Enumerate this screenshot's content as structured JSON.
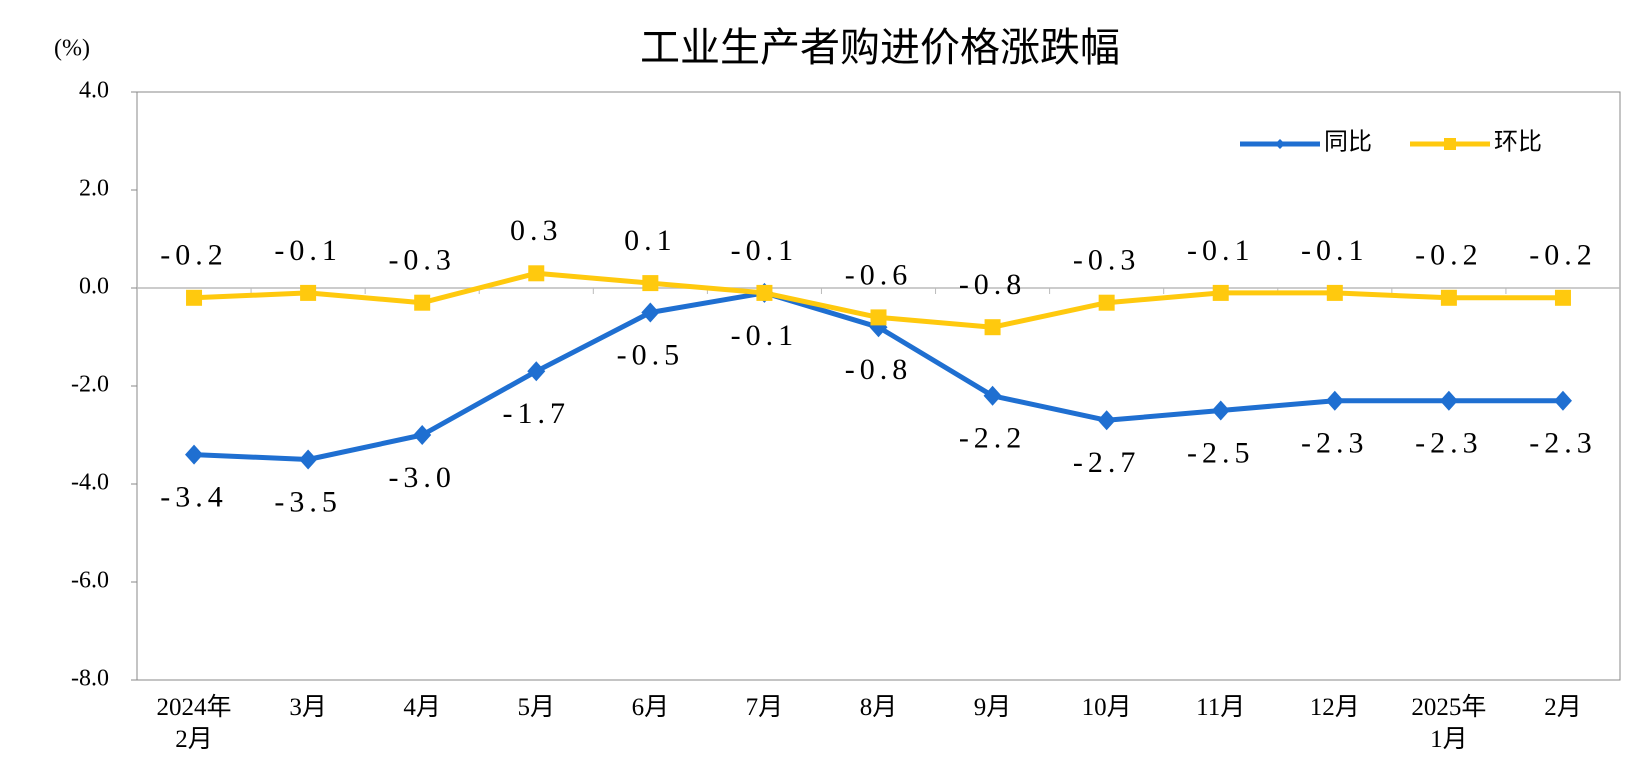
{
  "chart_data": {
    "type": "line",
    "title": "工业生产者购进价格涨跌幅",
    "y_label": "(%)",
    "categories": [
      "2024年2月",
      "3月",
      "4月",
      "5月",
      "6月",
      "7月",
      "8月",
      "9月",
      "10月",
      "11月",
      "12月",
      "2025年1月",
      "2月"
    ],
    "series": [
      {
        "name": "同比",
        "color": "#1f6fd1",
        "marker": "diamond",
        "values": [
          -3.4,
          -3.5,
          -3.0,
          -1.7,
          -0.5,
          -0.1,
          -0.8,
          -2.2,
          -2.7,
          -2.5,
          -2.3,
          -2.3,
          -2.3
        ],
        "value_labels": [
          "-3.4",
          "-3.5",
          "-3.0",
          "-1.7",
          "-0.5",
          "-0.1",
          "-0.8",
          "-2.2",
          "-2.7",
          "-2.5",
          "-2.3",
          "-2.3",
          "-2.3"
        ]
      },
      {
        "name": "环比",
        "color": "#ffc90e",
        "marker": "square",
        "values": [
          -0.2,
          -0.1,
          -0.3,
          0.3,
          0.1,
          -0.1,
          -0.6,
          -0.8,
          -0.3,
          -0.1,
          -0.1,
          -0.2,
          -0.2
        ],
        "value_labels": [
          "-0.2",
          "-0.1",
          "-0.3",
          "0.3",
          "0.1",
          "-0.1",
          "-0.6",
          "-0.8",
          "-0.3",
          "-0.1",
          "-0.1",
          "-0.2",
          "-0.2"
        ]
      }
    ],
    "ylim": [
      -8,
      4
    ],
    "yticks": [
      {
        "value": 4,
        "label": "4.0"
      },
      {
        "value": 2,
        "label": "2.0"
      },
      {
        "value": 0,
        "label": "0.0"
      },
      {
        "value": -2,
        "label": "-2.0"
      },
      {
        "value": -4,
        "label": "-4.0"
      },
      {
        "value": -6,
        "label": "-6.0"
      },
      {
        "value": -8,
        "label": "-8.0"
      }
    ],
    "legend": "top-right"
  }
}
